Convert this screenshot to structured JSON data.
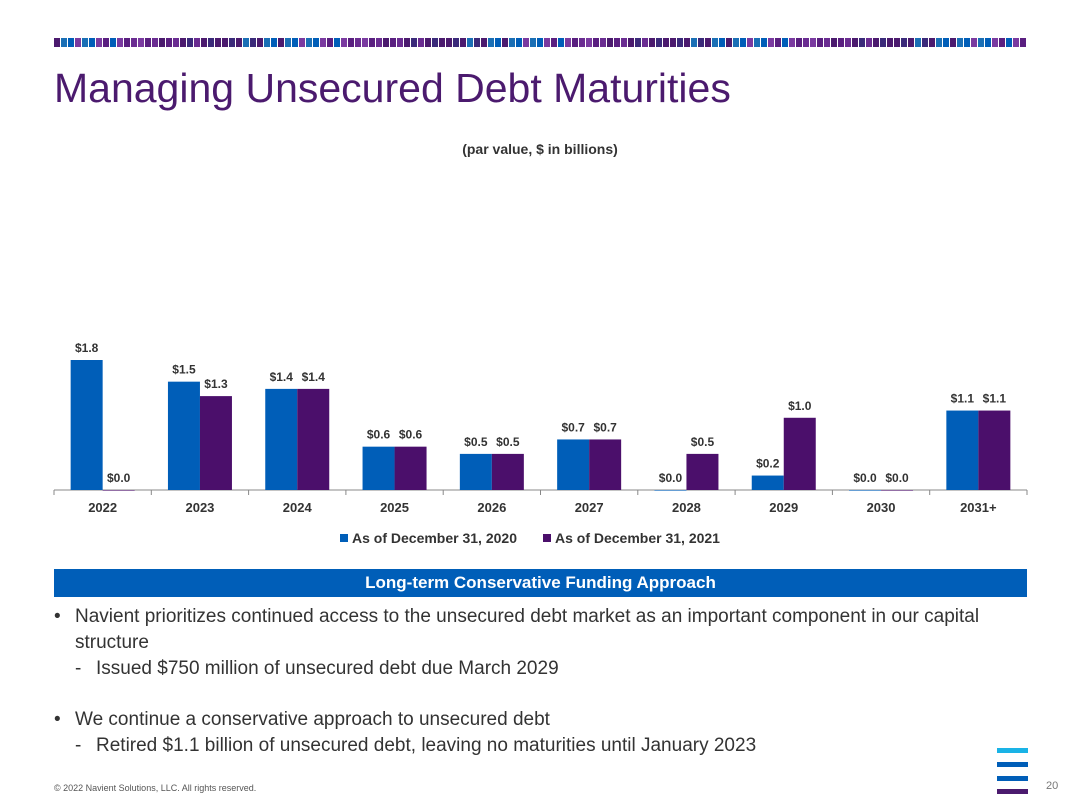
{
  "slide": {
    "title": "Managing Unsecured Debt Maturities",
    "subtitle": "(par value, $ in billions)",
    "banner": "Long-term Conservative Funding Approach",
    "bullets": [
      {
        "text": "Navient prioritizes continued access to the unsecured debt market as an important component in our capital structure",
        "sub": "Issued $750 million of unsecured debt due March 2029"
      },
      {
        "text": "We continue a conservative approach to unsecured debt",
        "sub": "Retired $1.1 billion of unsecured debt, leaving no maturities until January 2023"
      }
    ],
    "bullet_mark": "•",
    "sub_mark": "-",
    "footer": "© 2022 Navient Solutions, LLC. All rights reserved.",
    "page_number": "20",
    "colors": {
      "title": "#4b1a6e",
      "banner": "#005eb8",
      "logo_light": "#1ab3e6",
      "logo_mid": "#005eb8",
      "logo_dark": "#4b1a6e"
    }
  },
  "chart_data": {
    "type": "bar",
    "title": "",
    "categories": [
      "2022",
      "2023",
      "2024",
      "2025",
      "2026",
      "2027",
      "2028",
      "2029",
      "2030",
      "2031+"
    ],
    "series": [
      {
        "name": "As of December 31, 2020",
        "color": "#005eb8",
        "values": [
          1.8,
          1.5,
          1.4,
          0.6,
          0.5,
          0.7,
          0.0,
          0.2,
          0.0,
          1.1
        ],
        "labels": [
          "$1.8",
          "$1.5",
          "$1.4",
          "$0.6",
          "$0.5",
          "$0.7",
          "$0.0",
          "$0.2",
          "$0.0",
          "$1.1"
        ]
      },
      {
        "name": "As of December 31, 2021",
        "color": "#4b0f6b",
        "values": [
          0.0,
          1.3,
          1.4,
          0.6,
          0.5,
          0.7,
          0.5,
          1.0,
          0.0,
          1.1
        ],
        "labels": [
          "$0.0",
          "$1.3",
          "$1.4",
          "$0.6",
          "$0.5",
          "$0.7",
          "$0.5",
          "$1.0",
          "$0.0",
          "$1.1"
        ]
      }
    ],
    "ylim": [
      0,
      1.8
    ],
    "legend": "bottom",
    "grid": false
  }
}
